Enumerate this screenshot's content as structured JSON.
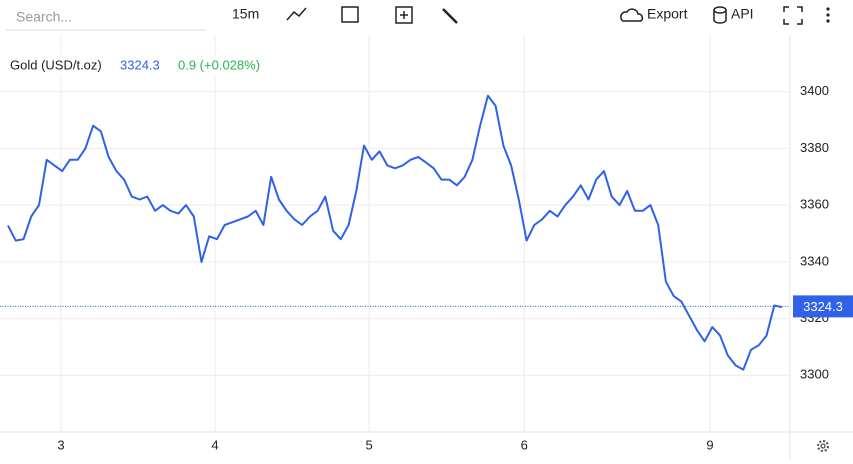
{
  "toolbar": {
    "search": "Search...",
    "interval": "15m",
    "export": "Export",
    "api": "API"
  },
  "chart_data": {
    "type": "line",
    "title": "Gold (USD/t.oz)",
    "last_value": 3324.3,
    "change": "0.9 (+0.028%)",
    "color": "#2f62e8",
    "values": [
      3352.8,
      3347.5,
      3348,
      3356,
      3360,
      3376,
      3374,
      3372,
      3376,
      3376,
      3380,
      3388,
      3386,
      3377,
      3372,
      3369,
      3363,
      3362,
      3363,
      3358,
      3360,
      3358,
      3357,
      3360,
      3356,
      3340,
      3349,
      3348,
      3353,
      3354,
      3355,
      3356,
      3358,
      3353,
      3370,
      3362,
      3358,
      3355,
      3353,
      3356,
      3358,
      3363,
      3351,
      3348,
      3353,
      3365,
      3381,
      3376,
      3379,
      3374,
      3373,
      3374,
      3376,
      3377,
      3375,
      3373,
      3369,
      3369,
      3367,
      3370,
      3376,
      3388,
      3398.6,
      3395,
      3381,
      3374,
      3362,
      3347.5,
      3353,
      3355,
      3358,
      3356,
      3360,
      3363,
      3367,
      3362,
      3369,
      3372,
      3363,
      3360,
      3365,
      3358,
      3358,
      3360,
      3353,
      3333,
      3328,
      3326,
      3321,
      3316,
      3312,
      3317,
      3314,
      3307,
      3303.5,
      3302,
      3309,
      3310.6,
      3314,
      3324.6,
      3324
    ],
    "xticks": [
      {
        "value": 6.85,
        "label": "3"
      },
      {
        "value": 26.75,
        "label": "4"
      },
      {
        "value": 46.65,
        "label": "5"
      },
      {
        "value": 66.7,
        "label": "6"
      },
      {
        "value": 90.7,
        "label": "9"
      }
    ],
    "ylim": [
      3280,
      3420
    ],
    "yticks": [
      3300,
      3320,
      3340,
      3360,
      3380,
      3400
    ],
    "grid": true
  }
}
